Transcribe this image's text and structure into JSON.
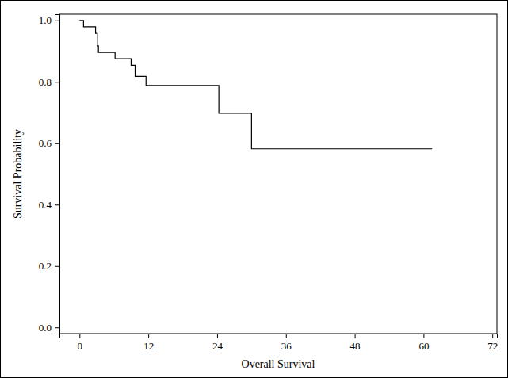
{
  "chart_data": {
    "type": "line",
    "line_style": "step",
    "color": "#000000",
    "x_label": "Overall Survival",
    "y_label": "Survival Probability",
    "x": [
      0,
      0.7,
      2.8,
      3.1,
      3.3,
      6.2,
      9.0,
      9.7,
      11.6,
      24.3,
      30.0,
      61.5
    ],
    "values": [
      1.0,
      0.979,
      0.958,
      0.917,
      0.896,
      0.875,
      0.854,
      0.818,
      0.788,
      0.698,
      0.582,
      0.582
    ],
    "xlim": [
      -3.5,
      72.8
    ],
    "ylim": [
      -0.02,
      1.02
    ],
    "xticks": [
      0,
      12,
      24,
      36,
      48,
      60,
      72
    ],
    "yticks": [
      {
        "value": 0.0,
        "label": "0.0"
      },
      {
        "value": 0.2,
        "label": "0.2"
      },
      {
        "value": 0.4,
        "label": "0.4"
      },
      {
        "value": 0.6,
        "label": "0.6"
      },
      {
        "value": 0.8,
        "label": "0.8"
      },
      {
        "value": 1.0,
        "label": "1.0"
      }
    ]
  }
}
